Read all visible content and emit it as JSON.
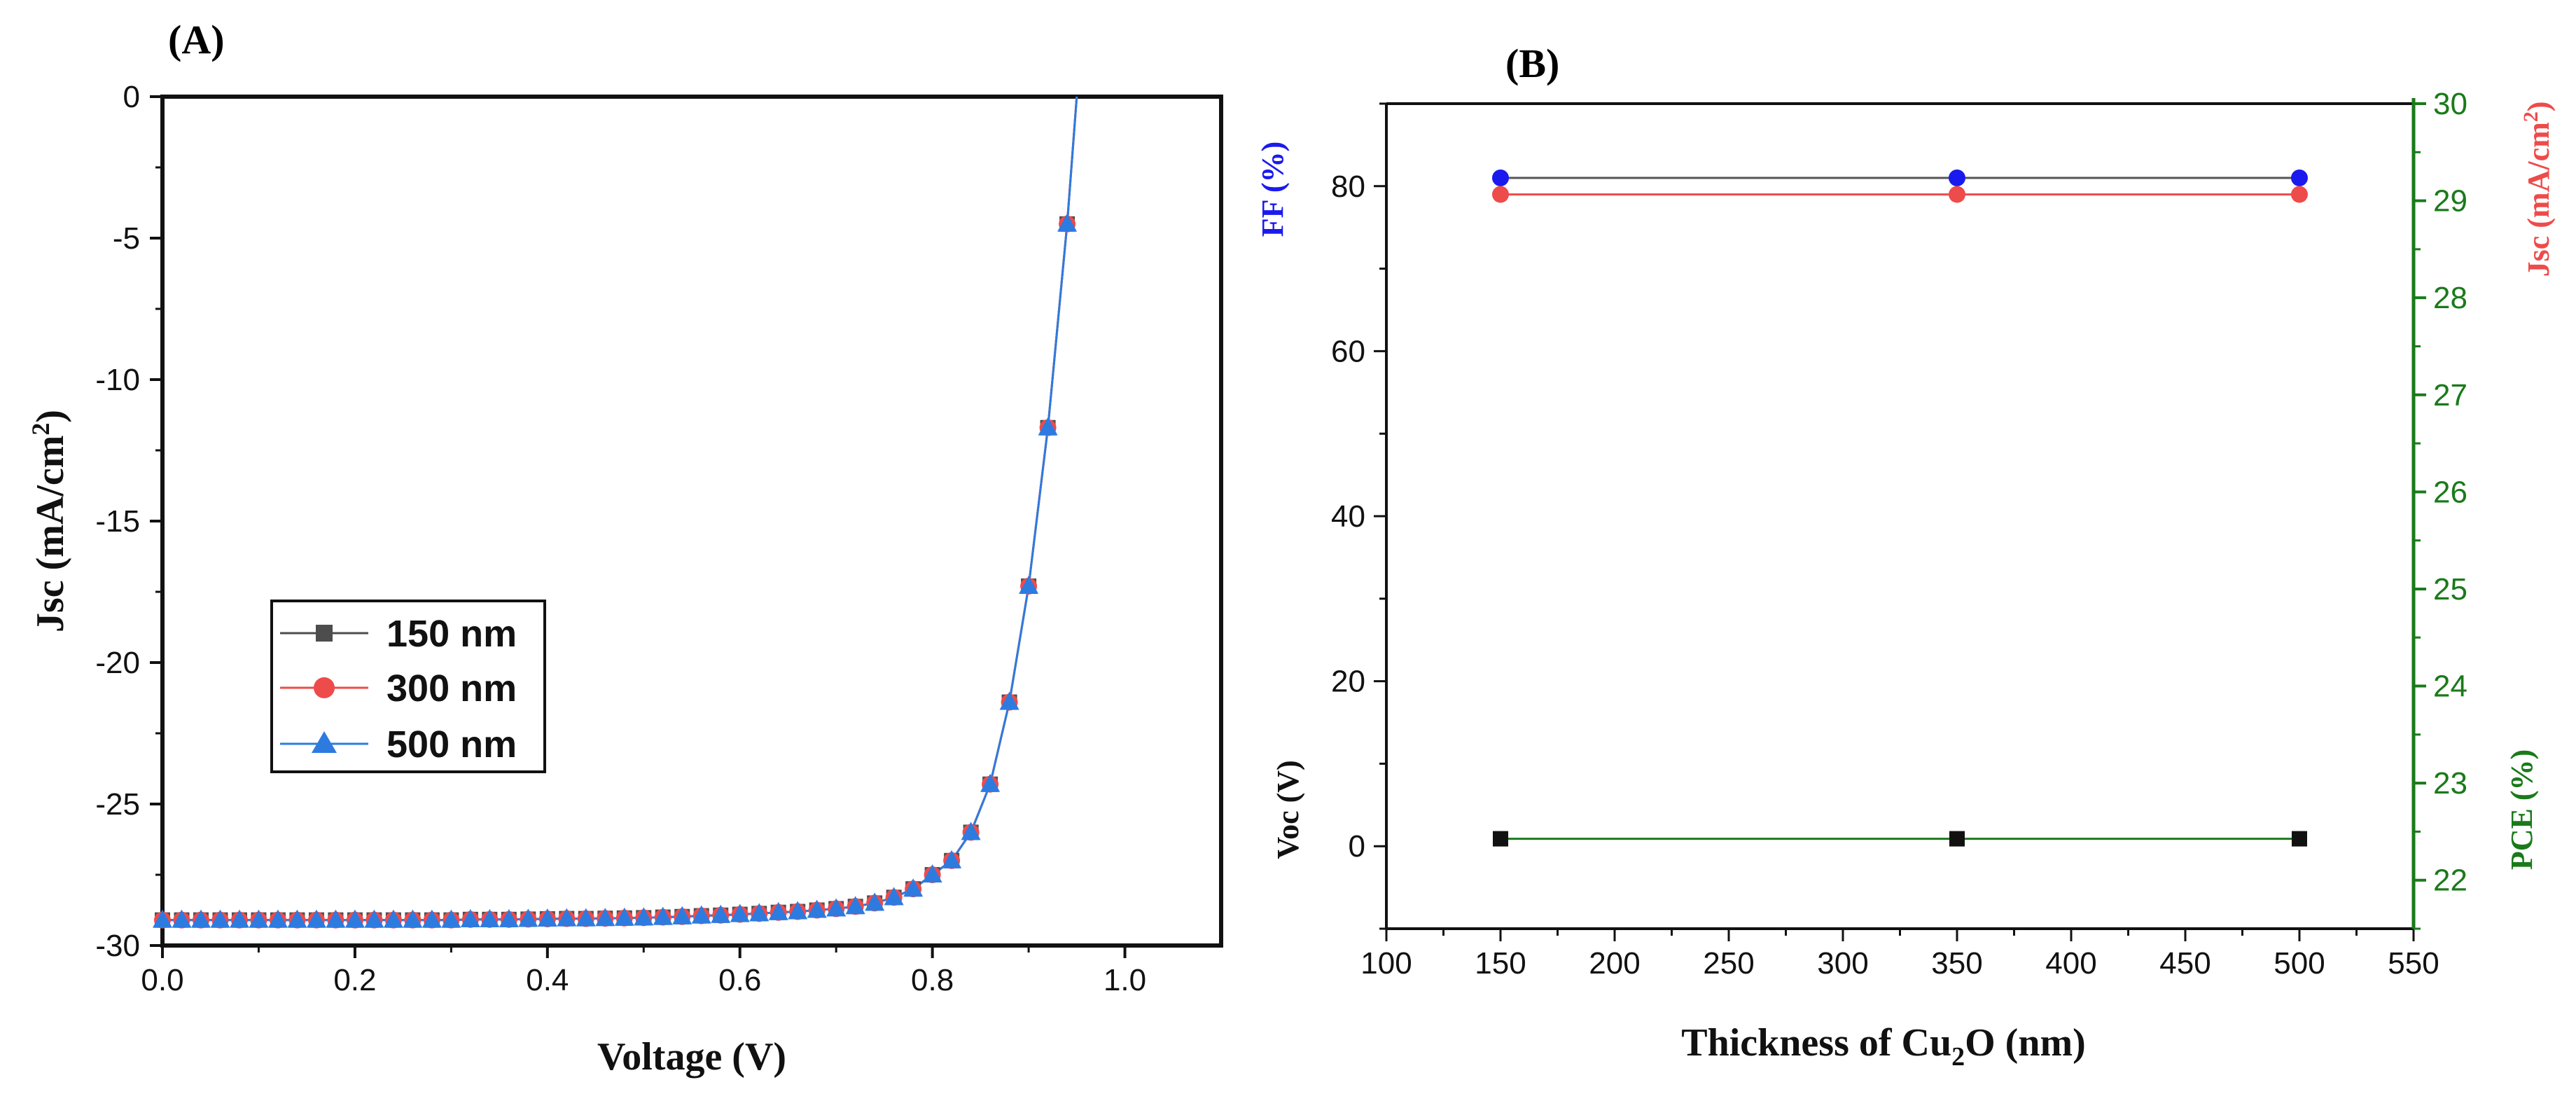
{
  "chart_data": [
    {
      "panel": "(A)",
      "type": "line",
      "title": "",
      "xlabel": "Voltage (V)",
      "ylabel": "Jsc (mA/cm²)",
      "xlim": [
        0.0,
        1.1
      ],
      "ylim": [
        -30,
        0
      ],
      "x_ticks": [
        "0.0",
        "0.2",
        "0.4",
        "0.6",
        "0.8",
        "1.0"
      ],
      "y_ticks": [
        "0",
        "-5",
        "-10",
        "-15",
        "-20",
        "-25",
        "-30"
      ],
      "legend": [
        "150 nm",
        "300 nm",
        "500 nm"
      ],
      "legend_position": "lower-left",
      "series": [
        {
          "name": "150 nm",
          "color": "#4d4d4d",
          "marker": "square"
        },
        {
          "name": "300 nm",
          "color": "#ee4b4b",
          "marker": "circle"
        },
        {
          "name": "500 nm",
          "color": "#2e7be0",
          "marker": "triangle"
        }
      ],
      "x": [
        0.0,
        0.02,
        0.04,
        0.06,
        0.08,
        0.1,
        0.12,
        0.14,
        0.16,
        0.18,
        0.2,
        0.22,
        0.24,
        0.26,
        0.28,
        0.3,
        0.32,
        0.34,
        0.36,
        0.38,
        0.4,
        0.42,
        0.44,
        0.46,
        0.48,
        0.5,
        0.52,
        0.54,
        0.56,
        0.58,
        0.6,
        0.62,
        0.64,
        0.66,
        0.68,
        0.7,
        0.72,
        0.74,
        0.76,
        0.78,
        0.8,
        0.82,
        0.84,
        0.86,
        0.88,
        0.9,
        0.92,
        0.94
      ],
      "y": [
        -29.1,
        -29.1,
        -29.1,
        -29.1,
        -29.1,
        -29.1,
        -29.1,
        -29.1,
        -29.1,
        -29.1,
        -29.1,
        -29.1,
        -29.1,
        -29.1,
        -29.1,
        -29.1,
        -29.08,
        -29.08,
        -29.08,
        -29.07,
        -29.06,
        -29.05,
        -29.05,
        -29.04,
        -29.03,
        -29.02,
        -29.0,
        -28.98,
        -28.95,
        -28.93,
        -28.9,
        -28.87,
        -28.83,
        -28.8,
        -28.75,
        -28.7,
        -28.62,
        -28.5,
        -28.3,
        -28.0,
        -27.5,
        -27.0,
        -26.0,
        -24.3,
        -21.4,
        -17.3,
        -11.7,
        -4.5
      ],
      "curve_end": [
        0.95,
        0.0
      ]
    },
    {
      "panel": "(B)",
      "type": "line",
      "title": "",
      "xlabel": "Thickness of Cu₂O (nm)",
      "ylabel_left_top": "FF (%)",
      "ylabel_left_bottom": "Voc (V)",
      "ylabel_right_top": "Jsc (mA/cm²)",
      "ylabel_right_bottom": "PCE (%)",
      "xlim": [
        100,
        550
      ],
      "ylim_left": [
        -10,
        90
      ],
      "ylim_right": [
        21.5,
        30
      ],
      "x_ticks": [
        "100",
        "150",
        "200",
        "250",
        "300",
        "350",
        "400",
        "450",
        "500",
        "550"
      ],
      "y_left_ticks": [
        "0",
        "20",
        "40",
        "60",
        "80"
      ],
      "y_right_ticks": [
        "22",
        "23",
        "24",
        "25",
        "26",
        "27",
        "28",
        "29",
        "30"
      ],
      "x": [
        150,
        350,
        500
      ],
      "series": [
        {
          "name": "FF (%)",
          "axis": "left",
          "color": "#1a1aee",
          "line_color": "#555555",
          "marker": "circle",
          "values": [
            81.0,
            81.0,
            81.0
          ]
        },
        {
          "name": "Jsc (mA/cm²)",
          "axis": "left",
          "color": "#ee4b4b",
          "line_color": "#ee4b4b",
          "marker": "circle",
          "values": [
            79.0,
            79.0,
            79.0
          ]
        },
        {
          "name": "Voc (V)",
          "axis": "left",
          "color": "#111111",
          "line_color": "#1a7a1a",
          "marker": "square",
          "values": [
            0.9,
            0.9,
            0.9
          ]
        }
      ],
      "colors": {
        "ff": "#1a1aee",
        "jsc": "#ee4b4b",
        "voc": "#111111",
        "pce": "#1a7a1a"
      }
    }
  ],
  "labels": {
    "panel_a": "(A)",
    "panel_b": "(B)",
    "a_xlabel": "Voltage (V)",
    "a_ylabel_main": "Jsc (mA/cm",
    "a_ylabel_sup": "2",
    "a_ylabel_end": ")",
    "b_xlabel_main": "Thickness of Cu",
    "b_xlabel_sub": "2",
    "b_xlabel_end": "O (nm)",
    "b_ff": "FF (%)",
    "b_voc": "Voc (V)",
    "b_jsc_main": "Jsc (mA/cm",
    "b_jsc_sup": "2",
    "b_jsc_end": ")",
    "b_pce": "PCE (%)"
  }
}
